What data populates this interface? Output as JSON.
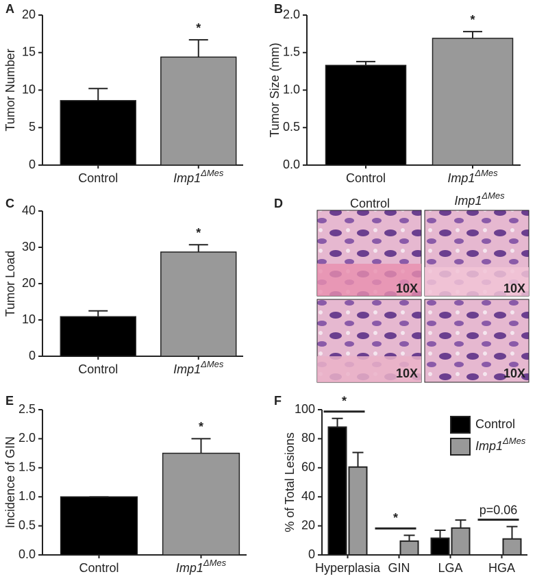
{
  "chart_data": [
    {
      "type": "bar",
      "panel": "A",
      "ylabel": "Tumor Number",
      "categories": [
        "Control",
        "Imp1ΔMes"
      ],
      "values": [
        8.6,
        14.4
      ],
      "errors": [
        1.6,
        2.3
      ],
      "colors": [
        "#000000",
        "#999999"
      ],
      "ylim": [
        0,
        20
      ],
      "yticks": [
        0,
        5,
        10,
        15,
        20
      ],
      "annotations": [
        {
          "text": "*",
          "category": "Imp1ΔMes"
        }
      ]
    },
    {
      "type": "bar",
      "panel": "B",
      "ylabel": "Tumor Size (mm)",
      "categories": [
        "Control",
        "Imp1ΔMes"
      ],
      "values": [
        1.33,
        1.69
      ],
      "errors": [
        0.05,
        0.09
      ],
      "colors": [
        "#000000",
        "#999999"
      ],
      "ylim": [
        0,
        2
      ],
      "yticks": [
        {
          "value": 0,
          "label": "0.0"
        },
        {
          "value": 0.5,
          "label": "0.5"
        },
        {
          "value": 1,
          "label": "1.0"
        },
        {
          "value": 1.5,
          "label": "1.5"
        },
        {
          "value": 2,
          "label": "2.0"
        }
      ],
      "annotations": [
        {
          "text": "*",
          "category": "Imp1ΔMes"
        }
      ]
    },
    {
      "type": "bar",
      "panel": "C",
      "ylabel": "Tumor Load",
      "categories": [
        "Control",
        "Imp1ΔMes"
      ],
      "values": [
        10.9,
        28.7
      ],
      "errors": [
        1.6,
        2.0
      ],
      "colors": [
        "#000000",
        "#999999"
      ],
      "ylim": [
        0,
        40
      ],
      "yticks": [
        0,
        10,
        20,
        30,
        40
      ],
      "annotations": [
        {
          "text": "*",
          "category": "Imp1ΔMes"
        }
      ]
    },
    {
      "type": "bar",
      "panel": "E",
      "ylabel": "Incidence of GIN",
      "categories": [
        "Control",
        "Imp1ΔMes"
      ],
      "values": [
        1.0,
        1.75
      ],
      "errors": [
        0,
        0.25
      ],
      "colors": [
        "#000000",
        "#999999"
      ],
      "ylim": [
        0,
        2.5
      ],
      "yticks": [
        {
          "value": 0,
          "label": "0.0"
        },
        {
          "value": 0.5,
          "label": "0.5"
        },
        {
          "value": 1,
          "label": "1.0"
        },
        {
          "value": 1.5,
          "label": "1.5"
        },
        {
          "value": 2,
          "label": "2.0"
        },
        {
          "value": 2.5,
          "label": "2.5"
        }
      ],
      "annotations": [
        {
          "text": "*",
          "category": "Imp1ΔMes"
        }
      ]
    },
    {
      "type": "grouped-bar",
      "panel": "F",
      "ylabel": "% of Total Lesions",
      "categories": [
        "Hyperplasia",
        "GIN",
        "LGA",
        "HGA"
      ],
      "series": [
        {
          "name": "Control",
          "color": "#000000",
          "values": [
            88,
            0,
            11.5,
            0
          ],
          "errors": [
            6,
            0,
            5.5,
            0
          ]
        },
        {
          "name": "Imp1ΔMes",
          "color": "#999999",
          "values": [
            60.5,
            9.5,
            18.5,
            11
          ],
          "errors": [
            10,
            4,
            5.5,
            8.5
          ]
        }
      ],
      "ylim": [
        0,
        100
      ],
      "yticks": [
        0,
        20,
        40,
        60,
        80,
        100
      ],
      "legend": "upper right",
      "annotations": [
        {
          "text": "*",
          "category": "Hyperplasia"
        },
        {
          "text": "*",
          "category": "GIN"
        },
        {
          "text": "p=0.06",
          "category": "HGA"
        }
      ]
    }
  ],
  "histology": {
    "panel": "D",
    "columns": [
      "Control",
      "Imp1ΔMes"
    ],
    "magnification": "10X"
  }
}
